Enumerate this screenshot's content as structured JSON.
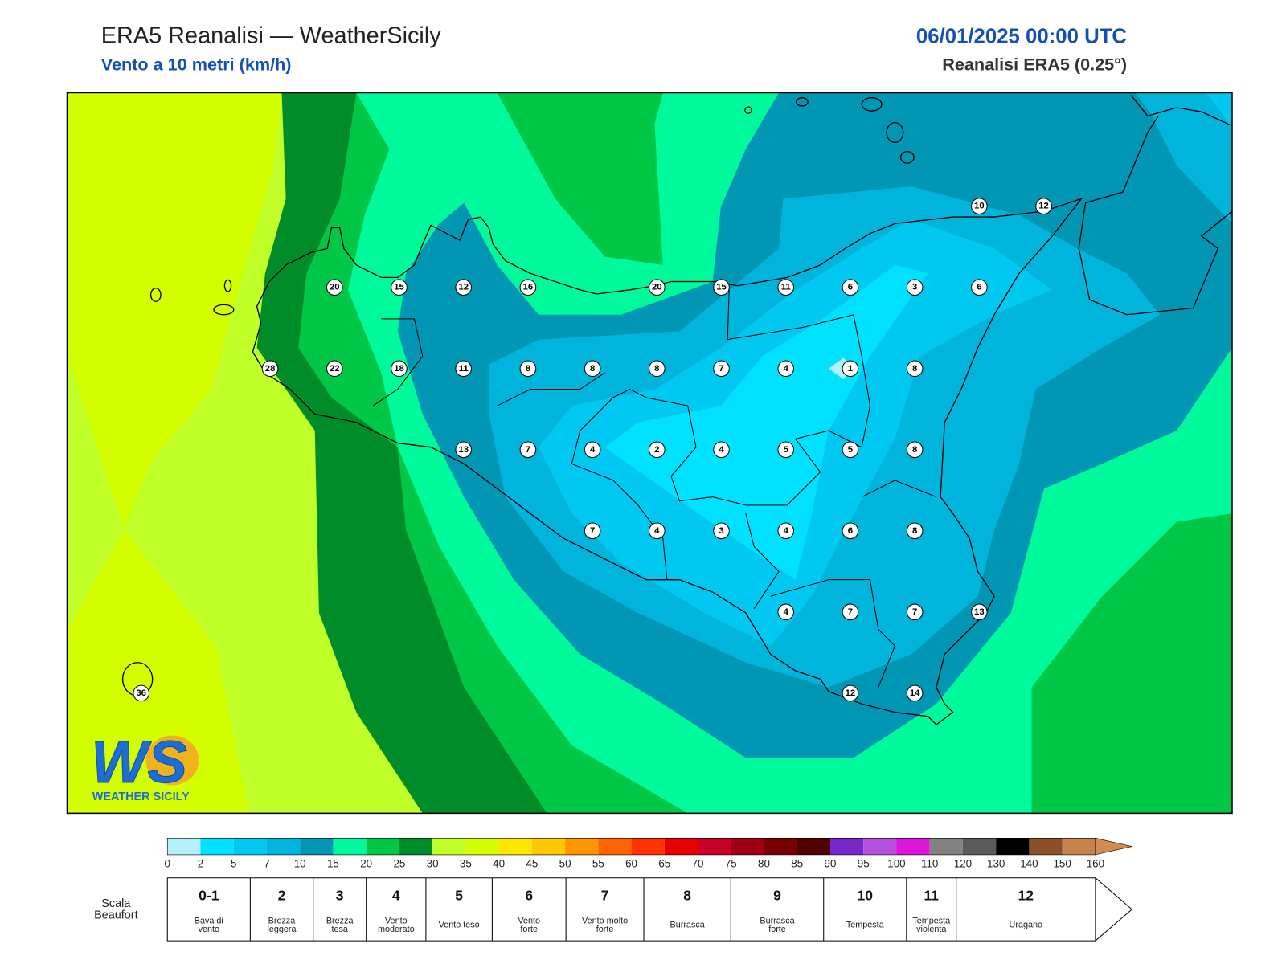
{
  "header": {
    "title": "ERA5 Reanalisi — WeatherSicily",
    "subtitle": "Vento a 10 metri (km/h)",
    "date": "06/01/2025 00:00 UTC",
    "source": "Reanalisi ERA5 (0.25°)"
  },
  "map": {
    "stations": [
      10,
      12,
      20,
      15,
      12,
      16,
      20,
      15,
      11,
      6,
      3,
      6,
      28,
      22,
      18,
      11,
      8,
      8,
      8,
      7,
      4,
      1,
      8,
      13,
      7,
      4,
      2,
      4,
      5,
      5,
      8,
      7,
      4,
      3,
      4,
      6,
      8,
      4,
      7,
      7,
      13,
      12,
      14,
      36
    ],
    "logo": {
      "mark": "WS",
      "name": "WEATHER SICILY"
    }
  },
  "colorbar": {
    "ticks": [
      0,
      2,
      5,
      7,
      10,
      15,
      20,
      25,
      30,
      35,
      40,
      45,
      50,
      55,
      60,
      65,
      70,
      75,
      80,
      85,
      90,
      95,
      100,
      110,
      120,
      130,
      140,
      150,
      160
    ],
    "colors": [
      "#b4f0fa",
      "#00e1ff",
      "#00c8f0",
      "#00b4dc",
      "#0096b4",
      "#00fa9b",
      "#00c846",
      "#008c28",
      "#c0ff28",
      "#d4ff00",
      "#ffe600",
      "#ffc800",
      "#ff9600",
      "#ff6400",
      "#ff3200",
      "#e60000",
      "#c80028",
      "#a00014",
      "#780000",
      "#500000",
      "#7828c8",
      "#b450dc",
      "#dc14dc",
      "#828282",
      "#5a5a5a",
      "#000000",
      "#8c5028",
      "#c8824b"
    ],
    "over_color": "#d28c50"
  },
  "beaufort": {
    "label": [
      "Scala",
      "Beaufort"
    ],
    "classes": [
      {
        "number": "0-1",
        "description": [
          "Bava di",
          "vento"
        ]
      },
      {
        "number": 2,
        "description": [
          "Brezza",
          "leggera"
        ]
      },
      {
        "number": 3,
        "description": [
          "Brezza",
          "tesa"
        ]
      },
      {
        "number": 4,
        "description": [
          "Vento",
          "moderato"
        ]
      },
      {
        "number": 5,
        "description": [
          "Vento teso"
        ]
      },
      {
        "number": 6,
        "description": [
          "Vento",
          "forte"
        ]
      },
      {
        "number": 7,
        "description": [
          "Vento molto",
          "forte"
        ]
      },
      {
        "number": 8,
        "description": [
          "Burrasca"
        ]
      },
      {
        "number": 9,
        "description": [
          "Burrasca",
          "forte"
        ]
      },
      {
        "number": 10,
        "description": [
          "Tempesta"
        ]
      },
      {
        "number": 11,
        "description": [
          "Tempesta",
          "violenta"
        ]
      },
      {
        "number": 12,
        "description": [
          "Uragano"
        ]
      }
    ]
  }
}
